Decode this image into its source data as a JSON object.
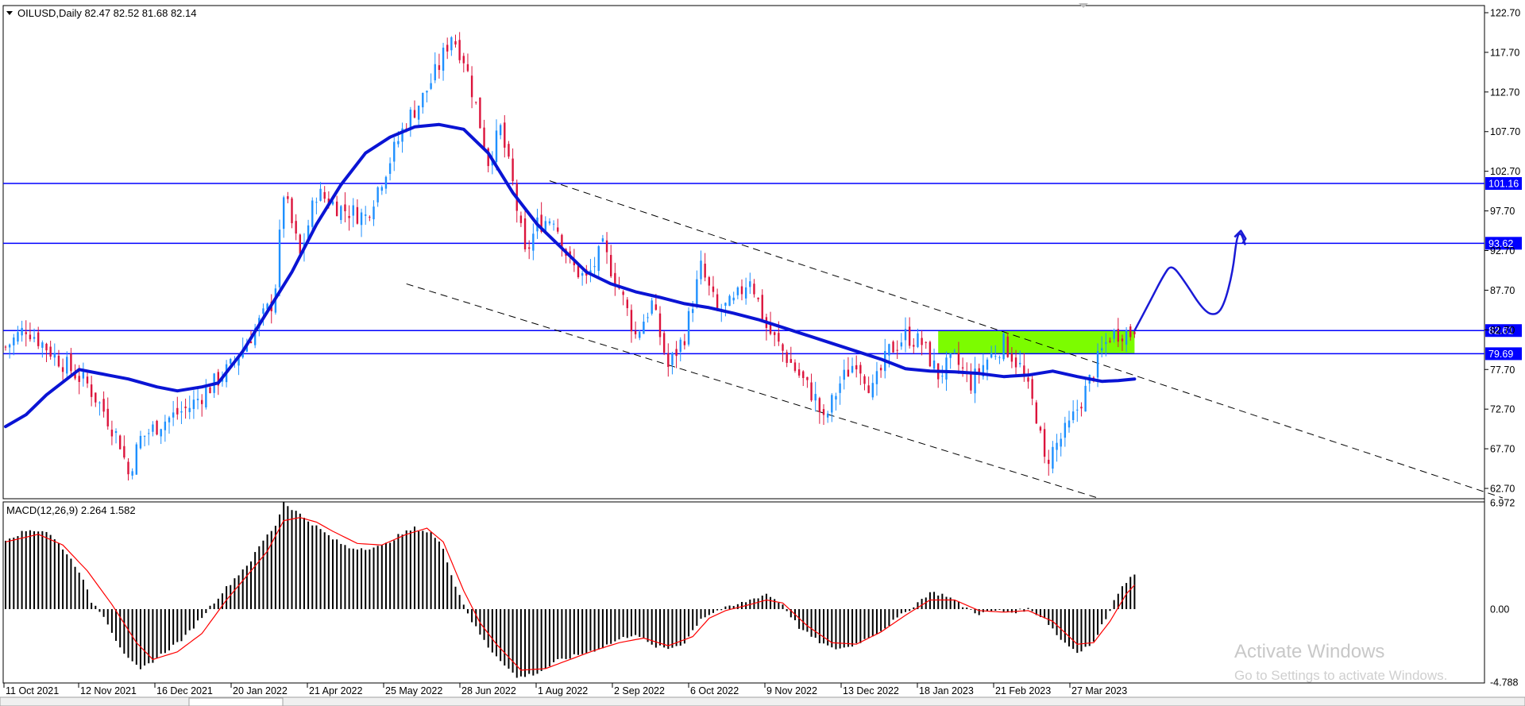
{
  "header": {
    "symbol_line": "OILUSD,Daily  82.47 82.52 81.68 82.14",
    "collapse_icon": "triangle-down-icon"
  },
  "macd": {
    "label": "MACD(12,26,9) 2.264 1.582",
    "ticks": [
      "6.972",
      "0.00",
      "-4.788"
    ],
    "range": [
      -4.788,
      6.972
    ],
    "signal_color": "#ff0000",
    "hist_color": "#000000"
  },
  "watermark": {
    "line1": "Activate Windows",
    "line2": "Go to Settings to activate Windows."
  },
  "colors": {
    "ma": "#0a14d4",
    "hline": "#0000ff",
    "bull": "#1e90ff",
    "bear": "#dc143c",
    "zone": "#7cfc00",
    "arrow": "#1a1ad6"
  },
  "chart_data": {
    "type": "candlestick",
    "symbol": "OILUSD",
    "timeframe": "Daily",
    "ohlc_last": {
      "open": 82.47,
      "high": 82.52,
      "low": 81.68,
      "close": 82.14
    },
    "ylim": [
      61.5,
      123.5
    ],
    "y_ticks": [
      "122.70",
      "117.70",
      "112.70",
      "107.70",
      "102.70",
      "97.70",
      "92.70",
      "87.70",
      "82.70",
      "77.70",
      "72.70",
      "67.70",
      "62.70"
    ],
    "x_ticks": [
      "11 Oct 2021",
      "12 Nov 2021",
      "16 Dec 2021",
      "20 Jan 2022",
      "21 Apr 2022",
      "25 May 2022",
      "28 Jun 2022",
      "1 Aug 2022",
      "2 Sep 2022",
      "6 Oct 2022",
      "9 Nov 2022",
      "13 Dec 2022",
      "18 Jan 2023",
      "21 Feb 2023",
      "27 Mar 2023"
    ],
    "horizontal_levels": [
      {
        "value": 101.16,
        "label": "101.16"
      },
      {
        "value": 93.62,
        "label": "93.62"
      },
      {
        "value": 82.61,
        "label": "82.61"
      },
      {
        "value": 79.69,
        "label": "79.69"
      }
    ],
    "close_anchors": [
      [
        0,
        80.5
      ],
      [
        5,
        83.0
      ],
      [
        12,
        79.5
      ],
      [
        20,
        75.8
      ],
      [
        24,
        72.5
      ],
      [
        28,
        68.5
      ],
      [
        30,
        64.5
      ],
      [
        33,
        69.0
      ],
      [
        38,
        71.0
      ],
      [
        45,
        73.0
      ],
      [
        50,
        75.5
      ],
      [
        55,
        78.0
      ],
      [
        60,
        82.0
      ],
      [
        65,
        86.0
      ],
      [
        66,
        88.5
      ],
      [
        68,
        100.0
      ],
      [
        70,
        96.0
      ],
      [
        72,
        92.0
      ],
      [
        76,
        100.0
      ],
      [
        82,
        98.0
      ],
      [
        88,
        97.0
      ],
      [
        93,
        103.0
      ],
      [
        98,
        109.0
      ],
      [
        102,
        112.0
      ],
      [
        106,
        116.0
      ],
      [
        109,
        120.0
      ],
      [
        112,
        117.0
      ],
      [
        115,
        111.0
      ],
      [
        118,
        104.0
      ],
      [
        121,
        108.0
      ],
      [
        124,
        101.0
      ],
      [
        127,
        92.0
      ],
      [
        130,
        96.0
      ],
      [
        134,
        97.0
      ],
      [
        138,
        91.0
      ],
      [
        142,
        89.0
      ],
      [
        146,
        93.0
      ],
      [
        150,
        88.0
      ],
      [
        154,
        82.0
      ],
      [
        158,
        86.0
      ],
      [
        162,
        78.0
      ],
      [
        166,
        82.0
      ],
      [
        170,
        90.5
      ],
      [
        174,
        85.0
      ],
      [
        178,
        86.0
      ],
      [
        182,
        89.5
      ],
      [
        186,
        83.0
      ],
      [
        190,
        80.0
      ],
      [
        194,
        77.0
      ],
      [
        198,
        74.0
      ],
      [
        200,
        71.0
      ],
      [
        204,
        76.0
      ],
      [
        208,
        79.0
      ],
      [
        212,
        75.0
      ],
      [
        216,
        80.0
      ],
      [
        220,
        82.0
      ],
      [
        224,
        81.0
      ],
      [
        228,
        77.0
      ],
      [
        232,
        79.0
      ],
      [
        236,
        76.0
      ],
      [
        240,
        79.0
      ],
      [
        244,
        81.0
      ],
      [
        248,
        78.0
      ],
      [
        252,
        72.0
      ],
      [
        254,
        66.0
      ],
      [
        256,
        67.5
      ],
      [
        260,
        70.5
      ],
      [
        264,
        75.0
      ],
      [
        268,
        80.0
      ],
      [
        270,
        82.0
      ],
      [
        273,
        82.5
      ],
      [
        276,
        82.14
      ]
    ],
    "moving_average": [
      [
        0,
        70.5
      ],
      [
        5,
        72.0
      ],
      [
        10,
        74.5
      ],
      [
        15,
        76.5
      ],
      [
        18,
        77.7
      ],
      [
        25,
        77.0
      ],
      [
        30,
        76.5
      ],
      [
        37,
        75.5
      ],
      [
        42,
        75.0
      ],
      [
        48,
        75.5
      ],
      [
        52,
        76.0
      ],
      [
        58,
        80.0
      ],
      [
        64,
        85.0
      ],
      [
        70,
        90.0
      ],
      [
        76,
        96.0
      ],
      [
        82,
        101.0
      ],
      [
        88,
        105.0
      ],
      [
        94,
        107.0
      ],
      [
        100,
        108.3
      ],
      [
        106,
        108.6
      ],
      [
        112,
        108.0
      ],
      [
        118,
        105.0
      ],
      [
        124,
        100.0
      ],
      [
        130,
        96.0
      ],
      [
        136,
        93.0
      ],
      [
        142,
        90.0
      ],
      [
        148,
        88.5
      ],
      [
        154,
        87.5
      ],
      [
        160,
        86.8
      ],
      [
        166,
        86.0
      ],
      [
        172,
        85.5
      ],
      [
        178,
        84.8
      ],
      [
        184,
        84.0
      ],
      [
        190,
        83.0
      ],
      [
        196,
        82.0
      ],
      [
        202,
        81.0
      ],
      [
        208,
        80.0
      ],
      [
        214,
        79.0
      ],
      [
        220,
        77.8
      ],
      [
        226,
        77.5
      ],
      [
        232,
        77.4
      ],
      [
        238,
        77.2
      ],
      [
        244,
        76.8
      ],
      [
        250,
        77.0
      ],
      [
        256,
        77.5
      ],
      [
        262,
        76.8
      ],
      [
        268,
        76.2
      ],
      [
        272,
        76.3
      ],
      [
        276,
        76.5
      ]
    ],
    "zone": {
      "from_bar": 228,
      "to_bar": 276,
      "low": 79.69,
      "high": 82.61
    },
    "channel_lines": [
      {
        "from": [
          133,
          101.5
        ],
        "to": [
          366,
          61.5
        ]
      },
      {
        "from": [
          98,
          88.5
        ],
        "to": [
          267,
          61.5
        ]
      }
    ],
    "forecast_path": [
      [
        276,
        82.6
      ],
      [
        280,
        86.5
      ],
      [
        283,
        89.5
      ],
      [
        285,
        91.0
      ],
      [
        288,
        89.0
      ],
      [
        293,
        85.0
      ],
      [
        296,
        84.5
      ],
      [
        298,
        86.0
      ],
      [
        300,
        90.0
      ],
      [
        301,
        94.5
      ],
      [
        302,
        95.0
      ],
      [
        303,
        93.5
      ]
    ],
    "macd_series": {
      "hist_anchors": [
        [
          0,
          4.6
        ],
        [
          6,
          5.2
        ],
        [
          10,
          5.1
        ],
        [
          14,
          4.0
        ],
        [
          18,
          2.5
        ],
        [
          21,
          0.5
        ],
        [
          24,
          -0.4
        ],
        [
          27,
          -2.0
        ],
        [
          30,
          -3.3
        ],
        [
          33,
          -4.0
        ],
        [
          36,
          -3.4
        ],
        [
          40,
          -2.6
        ],
        [
          44,
          -1.8
        ],
        [
          48,
          -0.5
        ],
        [
          52,
          0.8
        ],
        [
          56,
          2.0
        ],
        [
          60,
          3.2
        ],
        [
          63,
          4.5
        ],
        [
          66,
          5.5
        ],
        [
          68,
          7.0
        ],
        [
          70,
          6.6
        ],
        [
          73,
          6.0
        ],
        [
          76,
          5.4
        ],
        [
          80,
          4.6
        ],
        [
          84,
          4.0
        ],
        [
          88,
          4.0
        ],
        [
          92,
          4.1
        ],
        [
          96,
          4.8
        ],
        [
          100,
          5.3
        ],
        [
          104,
          5.0
        ],
        [
          107,
          4.0
        ],
        [
          110,
          1.5
        ],
        [
          114,
          -0.8
        ],
        [
          118,
          -2.5
        ],
        [
          122,
          -3.6
        ],
        [
          125,
          -4.5
        ],
        [
          130,
          -4.2
        ],
        [
          135,
          -3.4
        ],
        [
          140,
          -3.0
        ],
        [
          145,
          -2.6
        ],
        [
          150,
          -2.0
        ],
        [
          154,
          -1.6
        ],
        [
          158,
          -2.4
        ],
        [
          162,
          -2.6
        ],
        [
          166,
          -2.2
        ],
        [
          170,
          -0.6
        ],
        [
          174,
          -0.1
        ],
        [
          178,
          0.2
        ],
        [
          182,
          0.6
        ],
        [
          186,
          1.0
        ],
        [
          190,
          0.3
        ],
        [
          194,
          -1.2
        ],
        [
          198,
          -2.0
        ],
        [
          202,
          -2.6
        ],
        [
          206,
          -2.5
        ],
        [
          210,
          -2.0
        ],
        [
          214,
          -1.4
        ],
        [
          218,
          -0.6
        ],
        [
          222,
          0.2
        ],
        [
          226,
          1.1
        ],
        [
          230,
          0.9
        ],
        [
          234,
          0.2
        ],
        [
          238,
          -0.3
        ],
        [
          242,
          -0.1
        ],
        [
          246,
          -0.2
        ],
        [
          250,
          0.0
        ],
        [
          254,
          -0.6
        ],
        [
          258,
          -2.0
        ],
        [
          262,
          -2.8
        ],
        [
          266,
          -2.2
        ],
        [
          270,
          0.0
        ],
        [
          273,
          1.6
        ],
        [
          276,
          2.264
        ]
      ],
      "signal_anchors": [
        [
          0,
          4.4
        ],
        [
          8,
          4.9
        ],
        [
          14,
          4.2
        ],
        [
          20,
          2.5
        ],
        [
          26,
          0.3
        ],
        [
          32,
          -2.2
        ],
        [
          36,
          -3.3
        ],
        [
          42,
          -2.8
        ],
        [
          48,
          -1.6
        ],
        [
          54,
          0.6
        ],
        [
          60,
          2.5
        ],
        [
          64,
          3.8
        ],
        [
          68,
          5.8
        ],
        [
          72,
          6.0
        ],
        [
          76,
          5.7
        ],
        [
          80,
          5.1
        ],
        [
          86,
          4.3
        ],
        [
          92,
          4.2
        ],
        [
          98,
          4.9
        ],
        [
          103,
          5.3
        ],
        [
          107,
          4.4
        ],
        [
          112,
          1.2
        ],
        [
          116,
          -0.9
        ],
        [
          120,
          -2.3
        ],
        [
          126,
          -4.0
        ],
        [
          132,
          -3.9
        ],
        [
          138,
          -3.3
        ],
        [
          144,
          -2.7
        ],
        [
          150,
          -2.2
        ],
        [
          156,
          -1.9
        ],
        [
          162,
          -2.4
        ],
        [
          168,
          -1.8
        ],
        [
          172,
          -0.6
        ],
        [
          176,
          -0.1
        ],
        [
          182,
          0.3
        ],
        [
          186,
          0.6
        ],
        [
          190,
          0.4
        ],
        [
          196,
          -1.1
        ],
        [
          202,
          -2.2
        ],
        [
          208,
          -2.3
        ],
        [
          214,
          -1.5
        ],
        [
          220,
          -0.4
        ],
        [
          226,
          0.6
        ],
        [
          232,
          0.6
        ],
        [
          238,
          -0.1
        ],
        [
          244,
          -0.2
        ],
        [
          250,
          -0.1
        ],
        [
          256,
          -0.8
        ],
        [
          262,
          -2.3
        ],
        [
          266,
          -2.2
        ],
        [
          270,
          -0.8
        ],
        [
          274,
          1.0
        ],
        [
          276,
          1.582
        ]
      ],
      "last_macd": 2.264,
      "last_signal": 1.582
    }
  }
}
